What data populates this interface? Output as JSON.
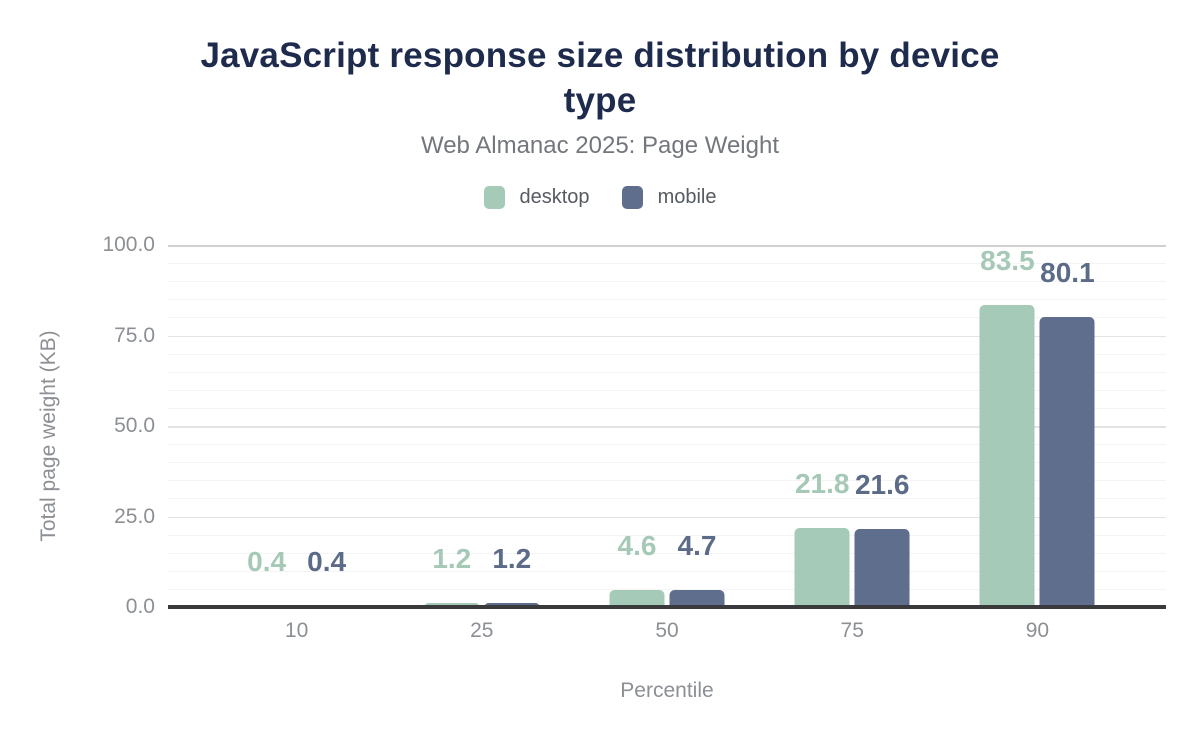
{
  "title_lines": [
    "JavaScript response size distribution by device",
    "type"
  ],
  "chart_data": {
    "type": "bar",
    "title": "JavaScript response size distribution by device type",
    "subtitle": "Web Almanac 2025: Page Weight",
    "categories": [
      "10",
      "25",
      "50",
      "75",
      "90"
    ],
    "series": [
      {
        "name": "desktop",
        "color": "#a5cab7",
        "label_color": "#a5c9b6",
        "values": [
          0.4,
          1.2,
          4.6,
          21.8,
          83.5
        ]
      },
      {
        "name": "mobile",
        "color": "#5e6e8c",
        "label_color": "#5b6b88",
        "values": [
          0.4,
          1.2,
          4.7,
          21.6,
          80.1
        ]
      }
    ],
    "xlabel": "Percentile",
    "ylabel": "Total page weight (KB)",
    "ylim": [
      0,
      100
    ],
    "yticks": [
      0,
      25,
      50,
      75,
      100
    ],
    "ytick_labels": [
      "0.0",
      "25.0",
      "50.0",
      "75.0",
      "100.0"
    ],
    "minor_grid_step": 5,
    "major_grid_step": 25,
    "grid": true,
    "legend_position": "top",
    "value_label_decimals": 1
  },
  "colors": {
    "background": "#ffffff",
    "title": "#1e2b4d",
    "subtitle": "#73777d",
    "legend_text": "#565b61",
    "axis_text": "#8c9095",
    "axis_line": "#3a3a3c",
    "grid_major": "#e3e3e3",
    "grid_minor": "#f4f4f4"
  }
}
